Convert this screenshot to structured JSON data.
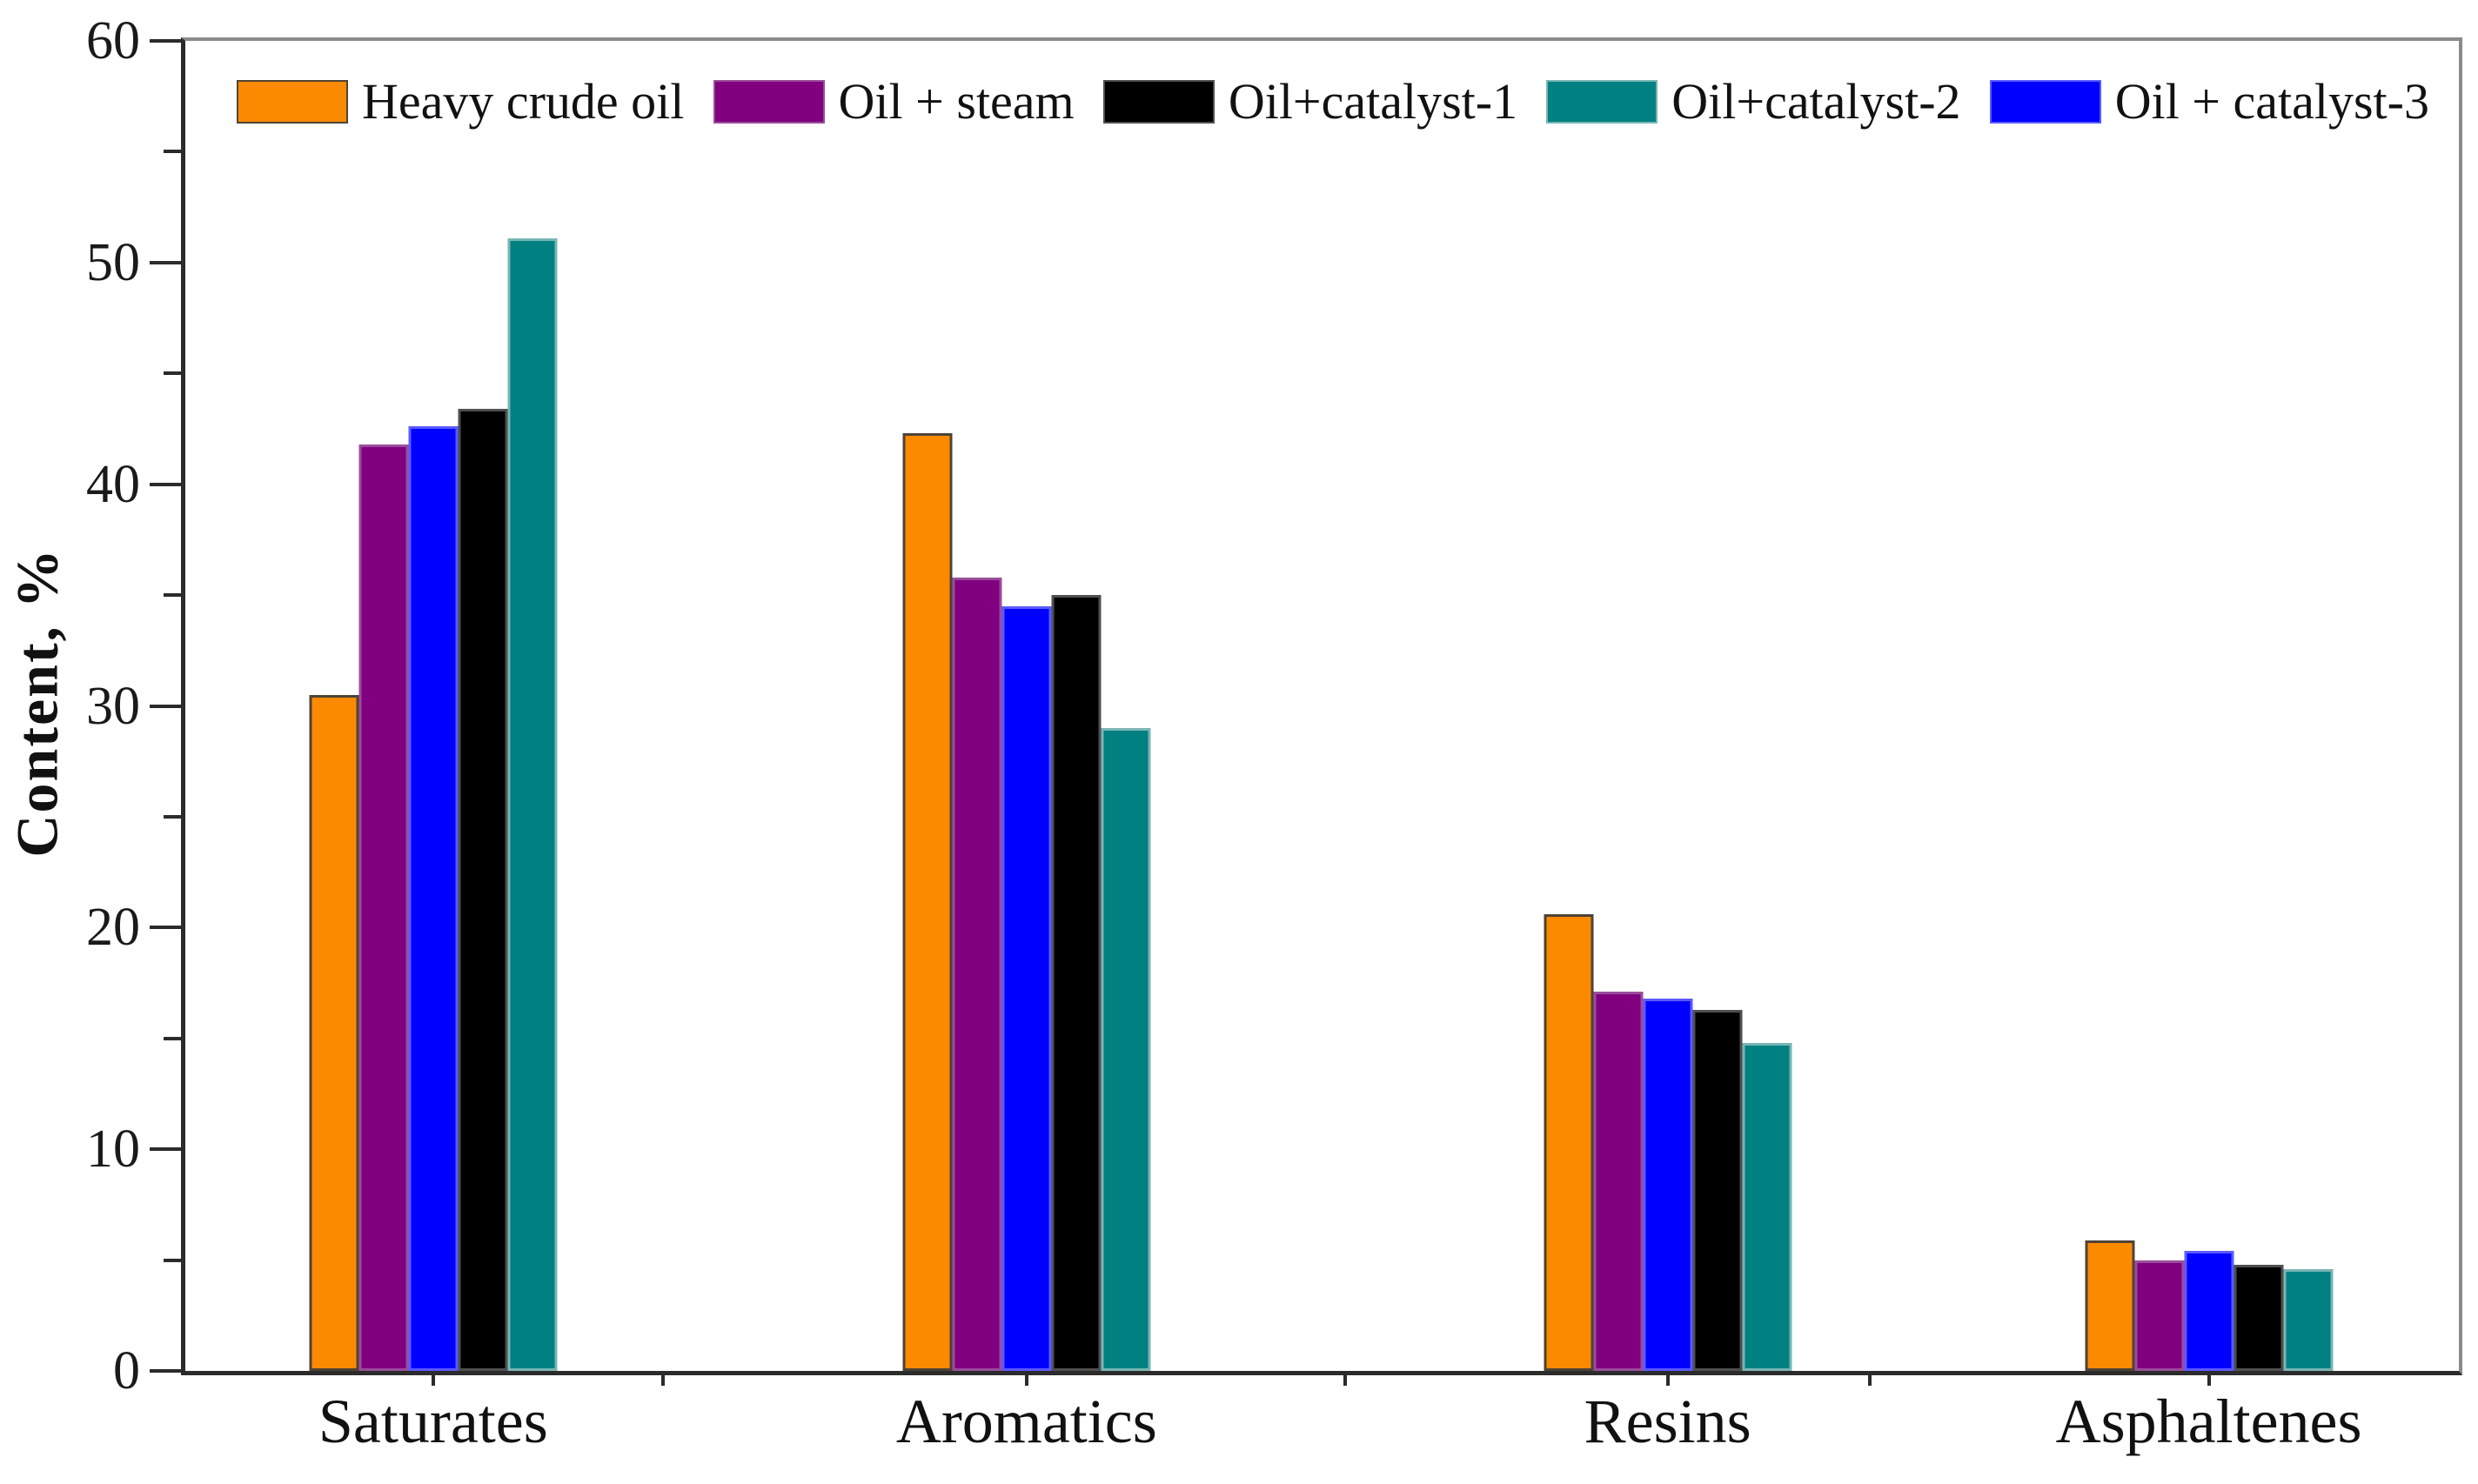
{
  "chart_data": {
    "type": "bar",
    "title": "",
    "ylabel": "Content, %",
    "xlabel": "",
    "categories": [
      "Saturates",
      "Aromatics",
      "Resins",
      "Asphaltenes"
    ],
    "series": [
      {
        "name": "Heavy crude oil",
        "color": "#FB8A00",
        "edge": "#4d4336",
        "values": [
          30.5,
          42.3,
          20.6,
          5.9
        ]
      },
      {
        "name": "Oil + steam",
        "color": "#800080",
        "edge": "#9a4d9a",
        "values": [
          41.8,
          35.8,
          17.1,
          5.0
        ]
      },
      {
        "name": "Oil+catalyst-1",
        "color": "#000000",
        "edge": "#4f4f4f",
        "values": [
          43.4,
          35.0,
          16.3,
          4.8
        ]
      },
      {
        "name": "Oil+catalyst-2",
        "color": "#008080",
        "edge": "#7ab5b5",
        "values": [
          51.1,
          29.0,
          14.8,
          4.6
        ]
      },
      {
        "name": "Oil + catalyst-3",
        "color": "#0000FF",
        "edge": "#5a5aff",
        "values": [
          42.6,
          34.5,
          16.8,
          5.4
        ]
      }
    ],
    "bar_display_order": [
      0,
      1,
      4,
      2,
      3
    ],
    "ylim": [
      0,
      60
    ],
    "yticks": [
      0,
      10,
      20,
      30,
      40,
      50,
      60
    ],
    "yticks_minor": [
      5,
      15,
      25,
      35,
      45,
      55
    ],
    "grid": "off",
    "legend_position": "top",
    "frame_color_main": "#2b2b2b",
    "frame_color_secondary": "#8a8a8a"
  }
}
